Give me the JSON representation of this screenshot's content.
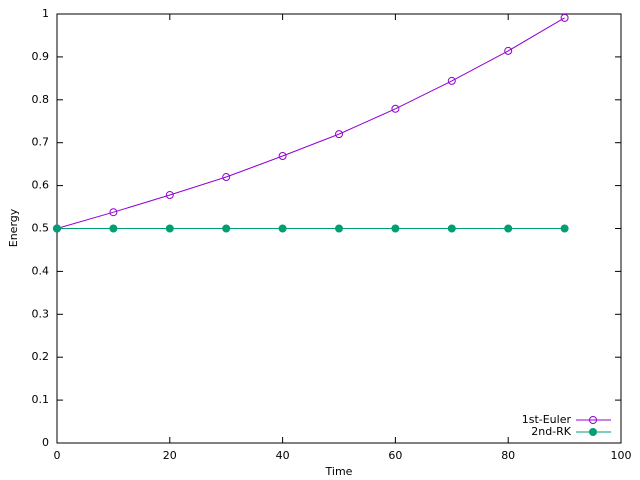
{
  "chart_data": {
    "type": "line",
    "x_label": "Time",
    "y_label": "Energy",
    "x": [
      0,
      10,
      20,
      30,
      40,
      50,
      60,
      70,
      80,
      90
    ],
    "series": [
      {
        "name": "1st-Euler",
        "color": "#9400d3",
        "marker": "open-circle",
        "values": [
          0.5,
          0.538,
          0.578,
          0.62,
          0.669,
          0.72,
          0.779,
          0.844,
          0.914,
          0.991
        ]
      },
      {
        "name": "2nd-RK",
        "color": "#009e73",
        "marker": "filled-circle",
        "values": [
          0.5,
          0.5,
          0.5,
          0.5,
          0.5,
          0.5,
          0.5,
          0.5,
          0.5,
          0.5
        ]
      }
    ],
    "xlim": [
      0,
      100
    ],
    "xticks": [
      0,
      20,
      40,
      60,
      80,
      100
    ],
    "ylim": [
      0,
      1
    ],
    "yticks": [
      0,
      0.1,
      0.2,
      0.3,
      0.4,
      0.5,
      0.6,
      0.7,
      0.8,
      0.9,
      1
    ],
    "grid": false,
    "legend": "lower right"
  }
}
